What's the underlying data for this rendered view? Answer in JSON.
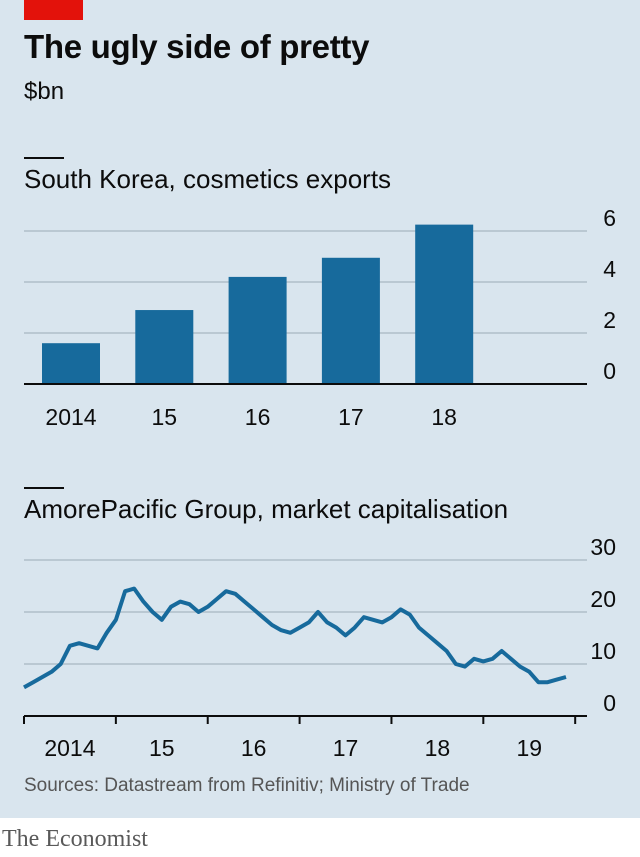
{
  "header": {
    "title": "The ugly side of pretty",
    "unit": "$bn"
  },
  "colors": {
    "bar": "#176a9c",
    "line": "#176a9c",
    "grid": "#b0bec9",
    "accent": "#e3120b"
  },
  "chart_data": [
    {
      "type": "bar",
      "title": "South Korea, cosmetics exports",
      "categories": [
        "2014",
        "15",
        "16",
        "17",
        "18"
      ],
      "values": [
        1.6,
        2.9,
        4.2,
        4.95,
        6.25
      ],
      "ylim": [
        0,
        6
      ],
      "yticks": [
        0,
        2,
        4,
        6
      ],
      "grid": true
    },
    {
      "type": "line",
      "title": "AmorePacific Group, market capitalisation",
      "x_ticks": [
        "2014",
        "15",
        "16",
        "17",
        "18",
        "19"
      ],
      "xlim": [
        2014.0,
        2019.9
      ],
      "ylim": [
        0,
        30
      ],
      "yticks": [
        0,
        10,
        20,
        30
      ],
      "grid": true,
      "series": [
        {
          "x": [
            2014.0,
            2014.1,
            2014.2,
            2014.3,
            2014.4,
            2014.5,
            2014.6,
            2014.7,
            2014.8,
            2014.9,
            2015.0,
            2015.1,
            2015.2,
            2015.3,
            2015.4,
            2015.5,
            2015.6,
            2015.7,
            2015.8,
            2015.9,
            2016.0,
            2016.1,
            2016.2,
            2016.3,
            2016.4,
            2016.5,
            2016.6,
            2016.7,
            2016.8,
            2016.9,
            2017.0,
            2017.1,
            2017.2,
            2017.3,
            2017.4,
            2017.5,
            2017.6,
            2017.7,
            2017.8,
            2017.9,
            2018.0,
            2018.1,
            2018.2,
            2018.3,
            2018.4,
            2018.5,
            2018.6,
            2018.7,
            2018.8,
            2018.9,
            2019.0,
            2019.1,
            2019.2,
            2019.3,
            2019.4,
            2019.5,
            2019.6,
            2019.7,
            2019.8,
            2019.9
          ],
          "values": [
            5.5,
            6.5,
            7.5,
            8.5,
            10,
            13.5,
            14,
            13.5,
            13,
            16,
            18.5,
            24,
            24.5,
            22,
            20,
            18.5,
            21,
            22,
            21.5,
            20,
            21,
            22.5,
            24,
            23.5,
            22,
            20.5,
            19,
            17.5,
            16.5,
            16,
            17,
            18,
            20,
            18,
            17,
            15.5,
            17,
            19,
            18.5,
            18,
            19,
            20.5,
            19.5,
            17,
            15.5,
            14,
            12.5,
            10,
            9.5,
            11,
            10.5,
            11,
            12.5,
            11,
            9.5,
            8.5,
            6.5,
            6.5,
            7,
            7.5
          ]
        }
      ]
    }
  ],
  "footer": {
    "source": "Sources: Datastream from Refinitiv; Ministry of Trade",
    "brand": "The Economist"
  }
}
